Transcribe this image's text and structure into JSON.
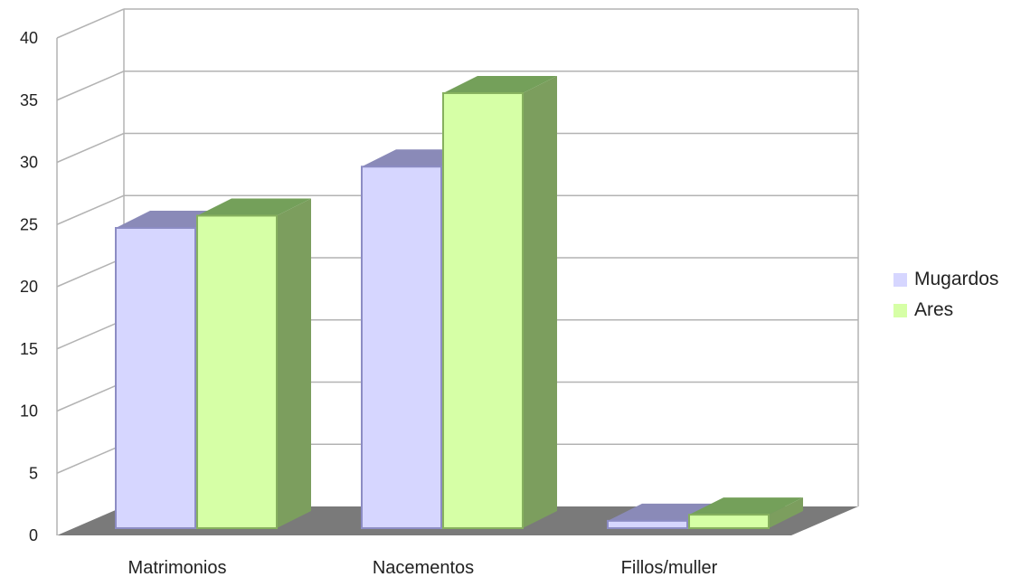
{
  "chart_data": {
    "type": "bar",
    "title": "",
    "xlabel": "",
    "ylabel": "",
    "categories": [
      "Matrimonios",
      "Nacementos",
      "Fillos/muller"
    ],
    "series": [
      {
        "name": "Mugardos",
        "values": [
          24.5,
          29.5,
          0.6
        ]
      },
      {
        "name": "Ares",
        "values": [
          25.5,
          35.5,
          1.1
        ]
      }
    ],
    "ylim": [
      0,
      40
    ],
    "yticks": [
      0,
      5,
      10,
      15,
      20,
      25,
      30,
      35,
      40
    ],
    "grid": true,
    "legend_position": "right",
    "three_d": true,
    "colors": {
      "series": [
        {
          "front": "#d6d6ff",
          "top": "#8a8ab8",
          "side": "#8a8ab8",
          "edge": "#8c8cc4"
        },
        {
          "front": "#d6ffa6",
          "top": "#74a05a",
          "side": "#7c9e5e",
          "edge": "#86b05e"
        }
      ],
      "floor": "#7a7a7a",
      "grid": "#b3b3b3"
    }
  }
}
